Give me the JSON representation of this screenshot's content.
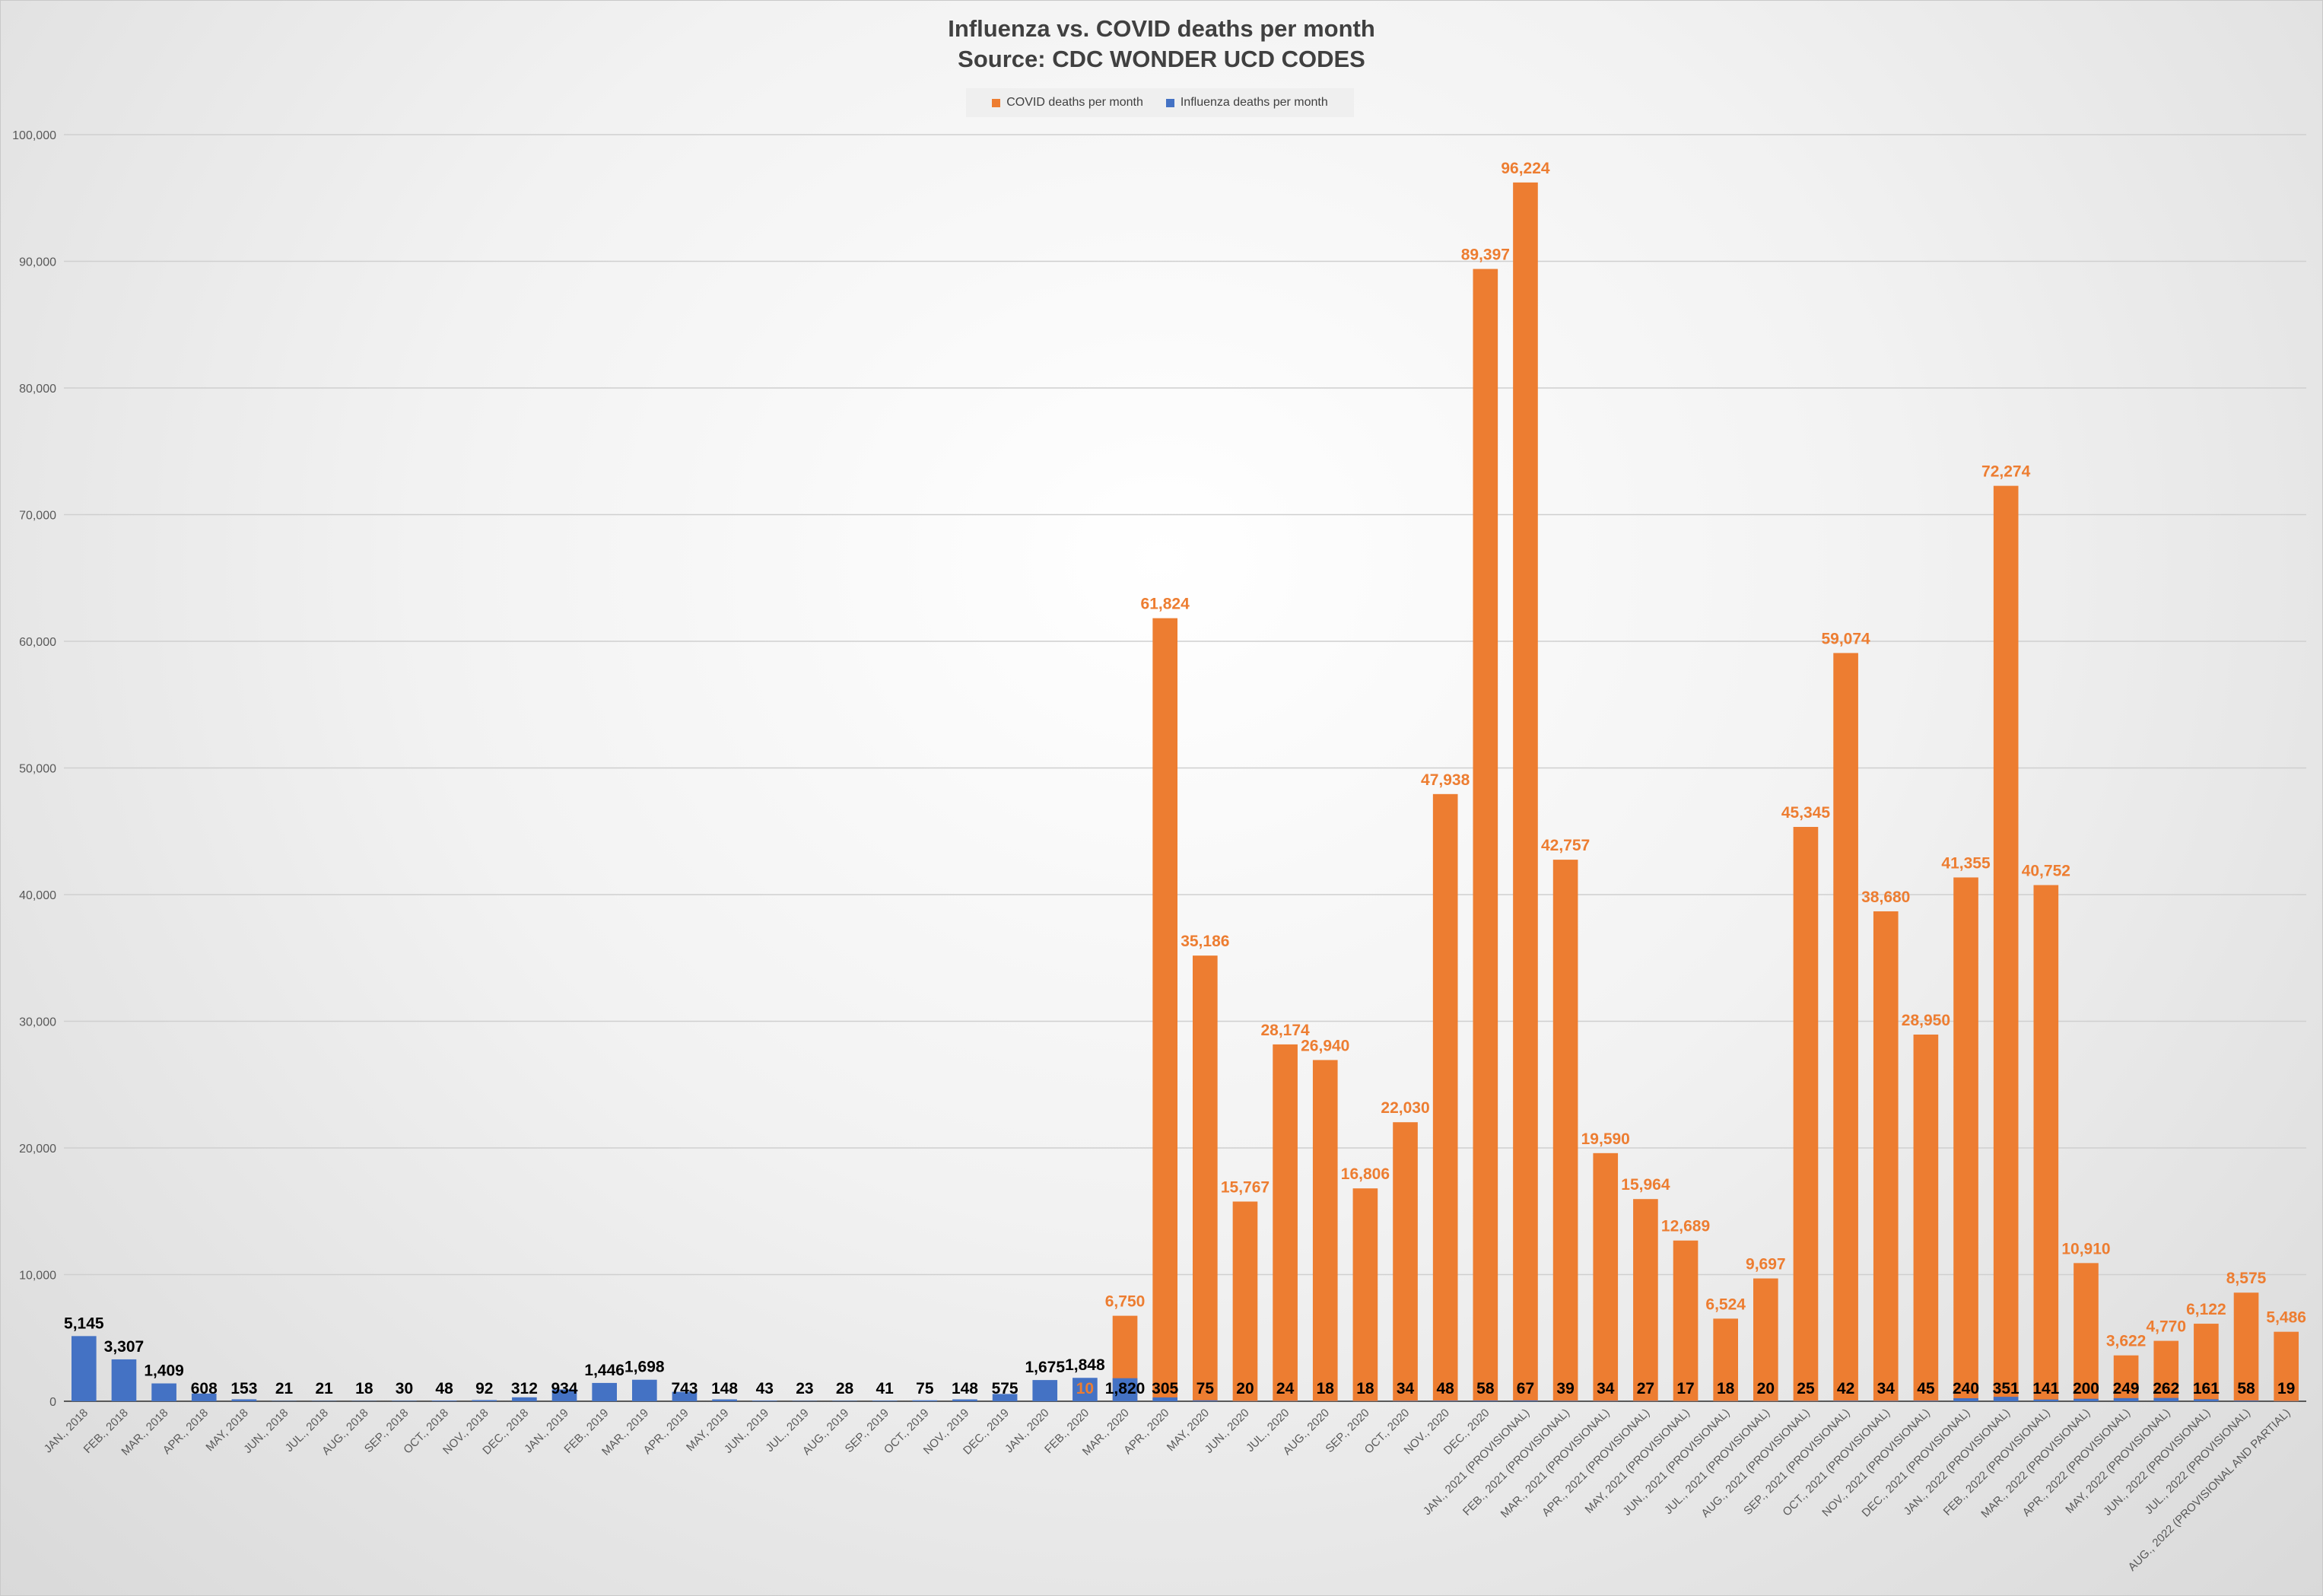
{
  "chart_data": {
    "type": "bar",
    "title": "Influenza vs. COVID deaths per month",
    "subtitle": "Source: CDC WONDER UCD CODES",
    "xlabel": "",
    "ylabel": "",
    "ylim": [
      0,
      100000
    ],
    "yticks": [
      "0",
      "10,000",
      "20,000",
      "30,000",
      "40,000",
      "50,000",
      "60,000",
      "70,000",
      "80,000",
      "90,000",
      "100,000"
    ],
    "grid": true,
    "legend_position": "top-center",
    "categories": [
      "JAN., 2018",
      "FEB., 2018",
      "MAR., 2018",
      "APR., 2018",
      "MAY, 2018",
      "JUN., 2018",
      "JUL., 2018",
      "AUG., 2018",
      "SEP., 2018",
      "OCT., 2018",
      "NOV., 2018",
      "DEC., 2018",
      "JAN., 2019",
      "FEB., 2019",
      "MAR., 2019",
      "APR., 2019",
      "MAY, 2019",
      "JUN., 2019",
      "JUL., 2019",
      "AUG., 2019",
      "SEP., 2019",
      "OCT., 2019",
      "NOV., 2019",
      "DEC., 2019",
      "JAN., 2020",
      "FEB., 2020",
      "MAR., 2020",
      "APR., 2020",
      "MAY, 2020",
      "JUN., 2020",
      "JUL., 2020",
      "AUG., 2020",
      "SEP., 2020",
      "OCT., 2020",
      "NOV., 2020",
      "DEC., 2020",
      "JAN., 2021 (PROVISIONAL)",
      "FEB., 2021 (PROVISIONAL)",
      "MAR., 2021 (PROVISIONAL)",
      "APR., 2021 (PROVISIONAL)",
      "MAY, 2021 (PROVISIONAL)",
      "JUN., 2021 (PROVISIONAL)",
      "JUL., 2021 (PROVISIONAL)",
      "AUG., 2021 (PROVISIONAL)",
      "SEP., 2021 (PROVISIONAL)",
      "OCT., 2021 (PROVISIONAL)",
      "NOV., 2021 (PROVISIONAL)",
      "DEC., 2021 (PROVISIONAL)",
      "JAN., 2022 (PROVISIONAL)",
      "FEB., 2022 (PROVISIONAL)",
      "MAR., 2022 (PROVISIONAL)",
      "APR., 2022 (PROVISIONAL)",
      "MAY, 2022 (PROVISIONAL)",
      "JUN., 2022 (PROVISIONAL)",
      "JUL., 2022 (PROVISIONAL)",
      "AUG., 2022 (PROVISIONAL AND PARTIAL)"
    ],
    "series": [
      {
        "name": "COVID deaths per month",
        "color": "#ED7D31",
        "values": [
          null,
          null,
          null,
          null,
          null,
          null,
          null,
          null,
          null,
          null,
          null,
          null,
          null,
          null,
          null,
          null,
          null,
          null,
          null,
          null,
          null,
          null,
          null,
          null,
          null,
          10,
          6750,
          61824,
          35186,
          15767,
          28174,
          26940,
          16806,
          22030,
          47938,
          89397,
          96224,
          42757,
          19590,
          15964,
          12689,
          6524,
          9697,
          45345,
          59074,
          38680,
          28950,
          41355,
          72274,
          40752,
          10910,
          3622,
          4770,
          6122,
          8575,
          5486
        ]
      },
      {
        "name": "Influenza deaths per month",
        "color": "#4472C4",
        "values": [
          5145,
          3307,
          1409,
          608,
          153,
          21,
          21,
          18,
          30,
          48,
          92,
          312,
          934,
          1446,
          1698,
          743,
          148,
          43,
          23,
          28,
          41,
          75,
          148,
          575,
          1675,
          1848,
          1820,
          305,
          75,
          20,
          24,
          18,
          18,
          34,
          48,
          58,
          67,
          39,
          34,
          27,
          17,
          18,
          20,
          25,
          42,
          34,
          45,
          240,
          351,
          141,
          200,
          249,
          262,
          161,
          58,
          19
        ]
      }
    ]
  }
}
